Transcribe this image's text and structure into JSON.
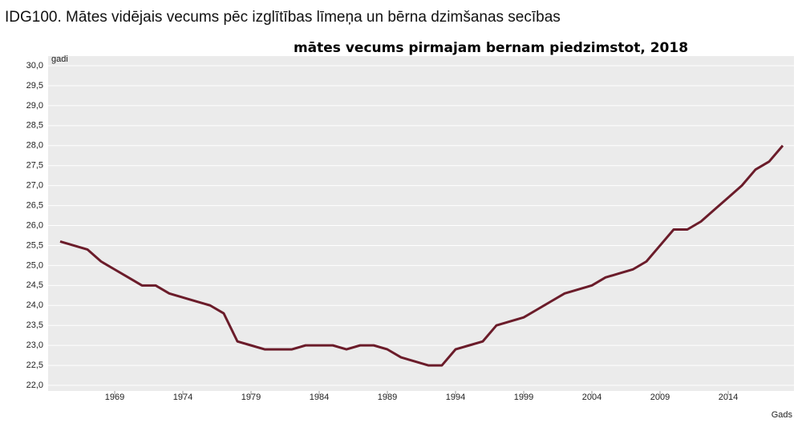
{
  "chart_data": {
    "type": "line",
    "title": "IDG100. Mātes vidējais vecums pēc izglītības līmeņa un bērna dzimšanas secības",
    "subtitle": "mātes vecums pirmajam bernam piedzimstot, 2018",
    "y_label": "gadi",
    "x_label": "Gads",
    "color": "#6b1c2a",
    "grid": true,
    "x": [
      1965,
      1966,
      1967,
      1968,
      1969,
      1970,
      1971,
      1972,
      1973,
      1974,
      1975,
      1976,
      1977,
      1978,
      1979,
      1980,
      1981,
      1982,
      1983,
      1984,
      1985,
      1986,
      1987,
      1988,
      1989,
      1990,
      1991,
      1992,
      1993,
      1994,
      1995,
      1996,
      1997,
      1998,
      1999,
      2000,
      2001,
      2002,
      2003,
      2004,
      2005,
      2006,
      2007,
      2008,
      2009,
      2010,
      2011,
      2012,
      2013,
      2014,
      2015,
      2016,
      2017,
      2018
    ],
    "values": [
      25.6,
      25.5,
      25.4,
      25.1,
      24.9,
      24.7,
      24.5,
      24.5,
      24.3,
      24.2,
      24.1,
      24.0,
      23.8,
      23.1,
      23.0,
      22.9,
      22.9,
      22.9,
      23.0,
      23.0,
      23.0,
      22.9,
      23.0,
      23.0,
      22.9,
      22.7,
      22.6,
      22.5,
      22.5,
      22.9,
      23.0,
      23.1,
      23.5,
      23.6,
      23.7,
      23.9,
      24.1,
      24.3,
      24.4,
      24.5,
      24.7,
      24.8,
      24.9,
      25.1,
      25.5,
      25.9,
      25.9,
      26.1,
      26.4,
      26.7,
      27.0,
      27.4,
      27.6,
      28.0
    ],
    "xlim": [
      1964,
      2019
    ],
    "xticks": [
      1969,
      1974,
      1979,
      1984,
      1989,
      1994,
      1999,
      2004,
      2009,
      2014
    ],
    "ylim": [
      22,
      30
    ],
    "yticks": [
      {
        "value": 22,
        "label": "22,0"
      },
      {
        "value": 22.5,
        "label": "22,5"
      },
      {
        "value": 23,
        "label": "23,0"
      },
      {
        "value": 23.5,
        "label": "23,5"
      },
      {
        "value": 24,
        "label": "24,0"
      },
      {
        "value": 24.5,
        "label": "24,5"
      },
      {
        "value": 25,
        "label": "25,0"
      },
      {
        "value": 25.5,
        "label": "25,5"
      },
      {
        "value": 26,
        "label": "26,0"
      },
      {
        "value": 26.5,
        "label": "26,5"
      },
      {
        "value": 27,
        "label": "27,0"
      },
      {
        "value": 27.5,
        "label": "27,5"
      },
      {
        "value": 28,
        "label": "28,0"
      },
      {
        "value": 28.5,
        "label": "28,5"
      },
      {
        "value": 29,
        "label": "29,0"
      },
      {
        "value": 29.5,
        "label": "29,5"
      },
      {
        "value": 30,
        "label": "30,0"
      }
    ]
  }
}
